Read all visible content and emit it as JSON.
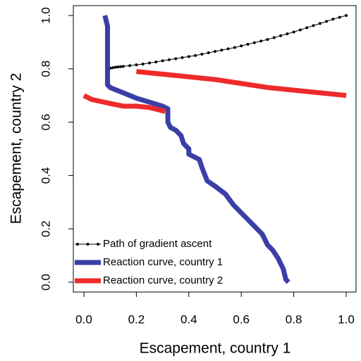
{
  "chart_data": {
    "type": "line",
    "x_label": "Escapement, country 1",
    "y_label": "Escapement, country 2",
    "xlim": [
      0,
      1
    ],
    "ylim": [
      0,
      1
    ],
    "xticks": [
      {
        "value": 0,
        "label": "0.0"
      },
      0.2,
      0.4,
      0.6,
      0.8,
      {
        "value": 1,
        "label": "1.0"
      }
    ],
    "yticks": [
      {
        "value": 0,
        "label": "0.0"
      },
      0.2,
      0.4,
      0.6,
      0.8,
      {
        "value": 1,
        "label": "1.0"
      }
    ],
    "legend": "bottom-left",
    "series": [
      {
        "name": "Path of gradient ascent",
        "color": "#000000",
        "style": "thin",
        "marker": "circle",
        "x": [
          0.09,
          0.09,
          0.09,
          0.09,
          0.09,
          0.09,
          0.1,
          0.11,
          0.12,
          0.13,
          0.14,
          0.15,
          0.175,
          0.2,
          0.225,
          0.25,
          0.275,
          0.3,
          0.325,
          0.35,
          0.375,
          0.4,
          0.425,
          0.45,
          0.475,
          0.5,
          0.525,
          0.55,
          0.575,
          0.6,
          0.625,
          0.65,
          0.675,
          0.7,
          0.725,
          0.75,
          0.775,
          0.8,
          0.825,
          0.85,
          0.875,
          0.9,
          0.925,
          0.95,
          0.975,
          1.0
        ],
        "values": [
          0.75,
          0.76,
          0.77,
          0.78,
          0.79,
          0.8,
          0.802,
          0.804,
          0.806,
          0.807,
          0.808,
          0.809,
          0.812,
          0.815,
          0.818,
          0.822,
          0.826,
          0.83,
          0.834,
          0.838,
          0.842,
          0.846,
          0.85,
          0.855,
          0.86,
          0.865,
          0.87,
          0.875,
          0.88,
          0.886,
          0.892,
          0.898,
          0.904,
          0.91,
          0.917,
          0.924,
          0.931,
          0.938,
          0.946,
          0.954,
          0.962,
          0.97,
          0.978,
          0.986,
          0.993,
          1.0
        ]
      },
      {
        "name": "Reaction curve, country 1",
        "color": "#3a3fa6",
        "style": "thick",
        "x": [
          0.08,
          0.09,
          0.09,
          0.1,
          0.15,
          0.2,
          0.25,
          0.3,
          0.32,
          0.32,
          0.33,
          0.35,
          0.37,
          0.38,
          0.4,
          0.4,
          0.42,
          0.44,
          0.45,
          0.47,
          0.5,
          0.54,
          0.57,
          0.6,
          0.63,
          0.66,
          0.68,
          0.7,
          0.72,
          0.74,
          0.76,
          0.77,
          0.78
        ],
        "values": [
          1.0,
          0.96,
          0.74,
          0.73,
          0.71,
          0.69,
          0.675,
          0.66,
          0.65,
          0.6,
          0.58,
          0.57,
          0.55,
          0.52,
          0.5,
          0.48,
          0.47,
          0.46,
          0.43,
          0.38,
          0.36,
          0.33,
          0.29,
          0.26,
          0.23,
          0.2,
          0.18,
          0.14,
          0.12,
          0.09,
          0.05,
          0.01,
          0.0
        ]
      },
      {
        "name": "Reaction curve, country 2",
        "color": "#ee2a2a",
        "style": "thick",
        "x": [
          0.0,
          0.03,
          0.1,
          0.15,
          0.2,
          0.25,
          0.29,
          0.31,
          null,
          0.2,
          0.3,
          0.4,
          0.5,
          0.6,
          0.7,
          0.8,
          0.9,
          1.0
        ],
        "values": [
          0.7,
          0.685,
          0.67,
          0.66,
          0.66,
          0.655,
          0.645,
          0.64,
          null,
          0.79,
          0.78,
          0.77,
          0.76,
          0.745,
          0.73,
          0.72,
          0.71,
          0.7
        ]
      }
    ]
  }
}
